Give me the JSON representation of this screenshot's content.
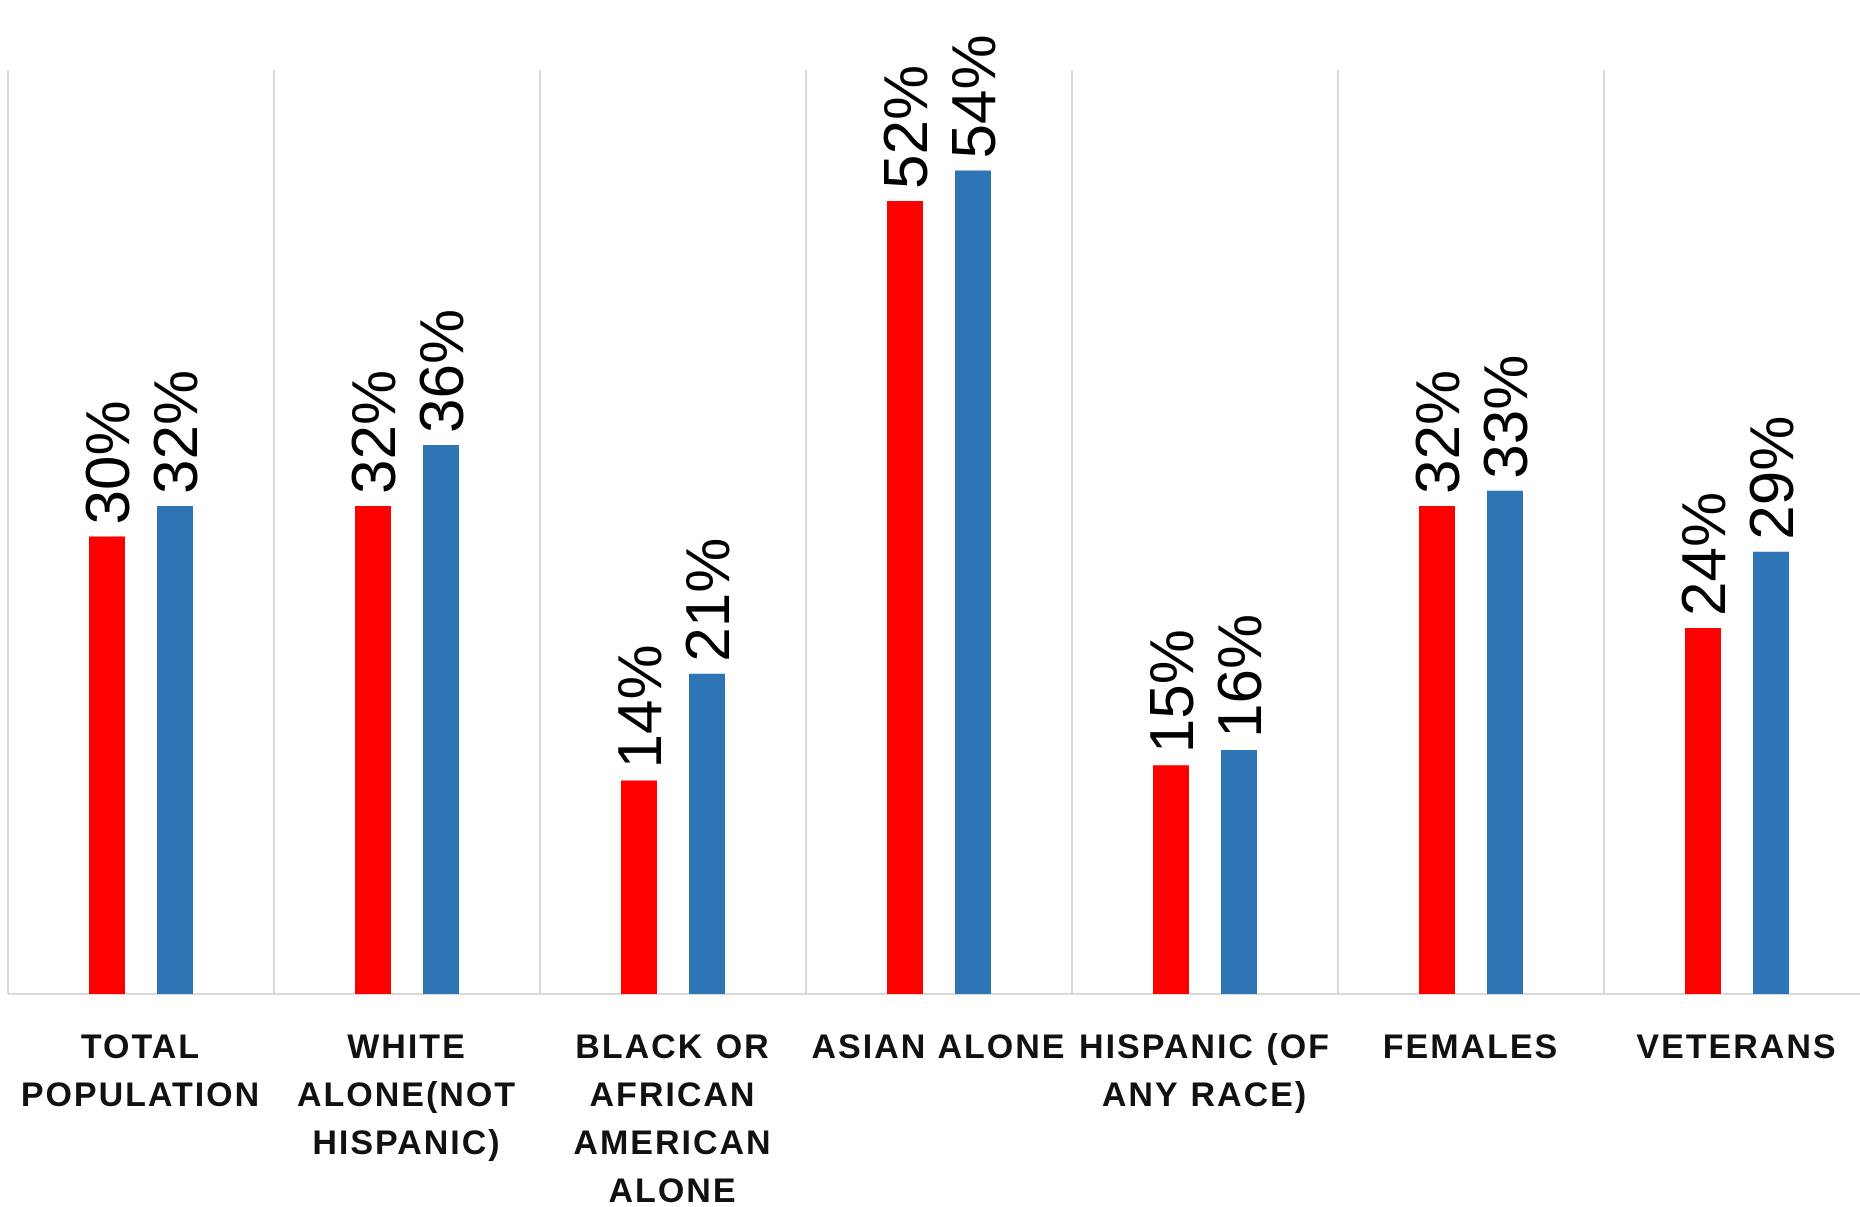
{
  "chart_data": {
    "type": "bar",
    "title": "",
    "xlabel": "",
    "ylabel": "",
    "ylim": [
      0,
      60
    ],
    "grid": "vertical category separators",
    "legend": "none",
    "categories": [
      [
        "TOTAL",
        "POPULATION"
      ],
      [
        "WHITE",
        "ALONE(NOT",
        "HISPANIC)"
      ],
      [
        "BLACK OR",
        "AFRICAN",
        "AMERICAN",
        "ALONE"
      ],
      [
        "ASIAN ALONE"
      ],
      [
        "HISPANIC (OF",
        "ANY RACE)"
      ],
      [
        "FEMALES"
      ],
      [
        "VETERANS"
      ]
    ],
    "series": [
      {
        "color": "#ff0000",
        "values": [
          30,
          32,
          14,
          52,
          15,
          32,
          24
        ],
        "labels": [
          "30%",
          "32%",
          "14%",
          "52%",
          "15%",
          "32%",
          "24%"
        ]
      },
      {
        "color": "#2e75b6",
        "values": [
          32,
          36,
          21,
          54,
          16,
          33,
          29
        ],
        "labels": [
          "32%",
          "36%",
          "21%",
          "54%",
          "16%",
          "33%",
          "29%"
        ]
      }
    ]
  }
}
